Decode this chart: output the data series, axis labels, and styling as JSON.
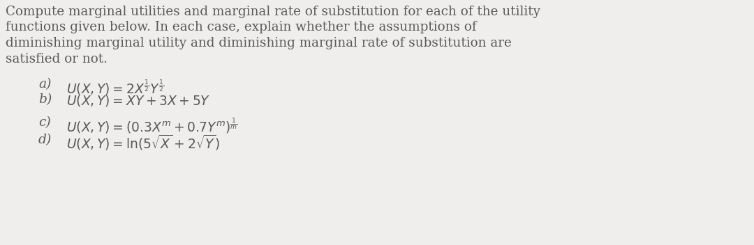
{
  "background_color": "#f0eeec",
  "text_color": "#5a5a5a",
  "para_line1": "Compute marginal utilities and marginal rate of substitution for each of the utility",
  "para_line2": "functions given below. In each case, explain whether the assumptions of",
  "para_line3": "diminishing marginal utility and diminishing marginal rate of substitution are",
  "para_line4": "satisfied or not.",
  "items": [
    {
      "label": "a)",
      "math": "$U(X,Y) = 2X^{\\frac{1}{2}}Y^{\\frac{1}{2}}$"
    },
    {
      "label": "b)",
      "math": "$U(X,Y) = XY + 3X + 5Y$"
    },
    {
      "label": "c)",
      "math": "$U(X,Y) = (0.3X^{m} + 0.7Y^{m})^{\\frac{1}{m}}$"
    },
    {
      "label": "d)",
      "math": "$U(X,Y) = \\ln(5\\sqrt{X} + 2\\sqrt{Y})$"
    }
  ],
  "fig_width": 10.8,
  "fig_height": 3.52,
  "dpi": 100
}
